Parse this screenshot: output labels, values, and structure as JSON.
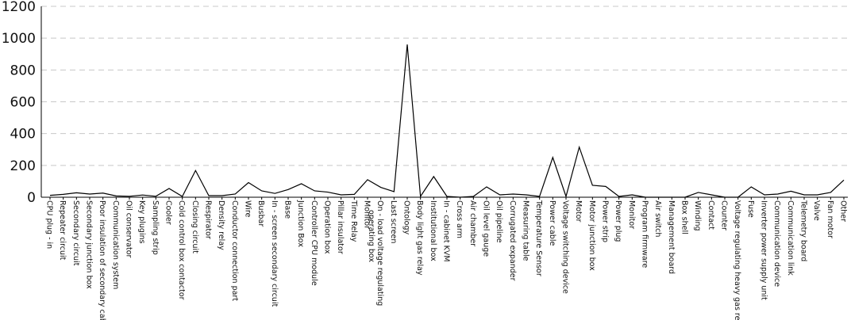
{
  "chart_data": {
    "type": "line",
    "title": "",
    "xlabel": "",
    "ylabel": "",
    "ylim": [
      0,
      1200
    ],
    "yticks": [
      0,
      200,
      400,
      600,
      800,
      1000,
      1200
    ],
    "grid": "horizontal dashed",
    "legend": "none",
    "line_color": "#000000",
    "categories": [
      "CPU plug - in",
      "Repeater circuit",
      "Secondary circuit",
      "Secondary junction box",
      "Poor insulation of secondary cable",
      "Communication system",
      "Oil conservator",
      "Key plugins",
      "Sampling strip",
      "Cooler",
      "Cold control box contactor",
      "Closing circuit",
      "Respirator",
      "Density relay",
      "Conductor connection part",
      "Wire",
      "Busbar",
      "In - screen secondary circuit",
      "Base",
      "Junction Box",
      "Controller CPU module",
      "Operation box",
      "Pillar insulator",
      "Time Relay",
      "Monitor",
      "On - load voltage regulating operating box",
      "Last screen",
      "Ontology",
      "Body light gas relay",
      "Institutional box",
      "In - cabinet KVM",
      "Cross arm",
      "Air chamber",
      "Oil level gauge",
      "Oil pipeline",
      "Corrugated expander",
      "Measuring table",
      "Temperature Sensor",
      "Power cable",
      "Voltage switching device",
      "Motor",
      "Motor junction box",
      "Power strip",
      "Power plug",
      "Monitor",
      "Program firmware",
      "Air switch",
      "Management board",
      "Box shell",
      "Winding",
      "Contact",
      "Counter",
      "Voltage regulating heavy gas relay",
      "Fuse",
      "Inverter power supply unit",
      "Communication device",
      "Communication link",
      "Telemetry board",
      "Valve",
      "Fan motor",
      "Other"
    ],
    "series": [
      {
        "values": [
          12,
          18,
          28,
          20,
          26,
          8,
          6,
          14,
          6,
          55,
          5,
          168,
          10,
          10,
          20,
          92,
          40,
          24,
          48,
          85,
          40,
          32,
          15,
          18,
          110,
          62,
          35,
          960,
          5,
          130,
          5,
          0,
          5,
          65,
          15,
          20,
          15,
          5,
          250,
          5,
          315,
          75,
          68,
          5,
          15,
          0,
          0,
          0,
          0,
          30,
          15,
          0,
          0,
          65,
          15,
          20,
          38,
          15,
          15,
          30,
          108
        ]
      }
    ]
  }
}
